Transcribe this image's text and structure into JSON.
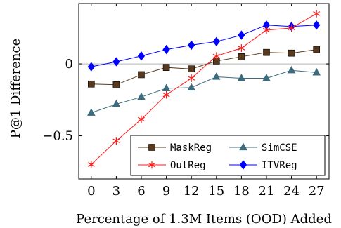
{
  "chart_data": {
    "type": "line",
    "xlabel": "Percentage of 1.3M Items (OOD) Added",
    "ylabel": "P@1 Difference",
    "x": [
      0,
      3,
      6,
      9,
      12,
      15,
      18,
      21,
      24,
      27
    ],
    "x_ticks": [
      "0",
      "3",
      "6",
      "9",
      "12",
      "15",
      "18",
      "21",
      "24",
      "27"
    ],
    "y_ticks": [
      {
        "value": 0,
        "label": "0"
      },
      {
        "value": -0.5,
        "label": "−0.5"
      }
    ],
    "xlim": [
      -1.5,
      28.5
    ],
    "ylim": [
      -0.8,
      0.42
    ],
    "grid": "horizontal zero line",
    "legend": {
      "placement": "bottom-right",
      "columns": 2
    },
    "series": [
      {
        "name": "MaskReg",
        "color": "#5a3a1e",
        "marker": "square",
        "values": [
          -0.14,
          -0.145,
          -0.075,
          -0.025,
          -0.035,
          0.02,
          0.05,
          0.08,
          0.075,
          0.1
        ]
      },
      {
        "name": "SimCSE",
        "color": "#3d6b7d",
        "marker": "triangle",
        "values": [
          -0.34,
          -0.28,
          -0.23,
          -0.17,
          -0.165,
          -0.09,
          -0.1,
          -0.1,
          -0.045,
          -0.06
        ]
      },
      {
        "name": "OutReg",
        "color": "#ff1a1a",
        "marker": "star",
        "values": [
          -0.7,
          -0.535,
          -0.385,
          -0.215,
          -0.1,
          0.055,
          0.11,
          0.235,
          0.25,
          0.35
        ]
      },
      {
        "name": "ITVReg",
        "color": "#0000ff",
        "marker": "diamond",
        "values": [
          -0.02,
          0.015,
          0.055,
          0.1,
          0.13,
          0.155,
          0.2,
          0.27,
          0.26,
          0.27
        ]
      }
    ]
  }
}
